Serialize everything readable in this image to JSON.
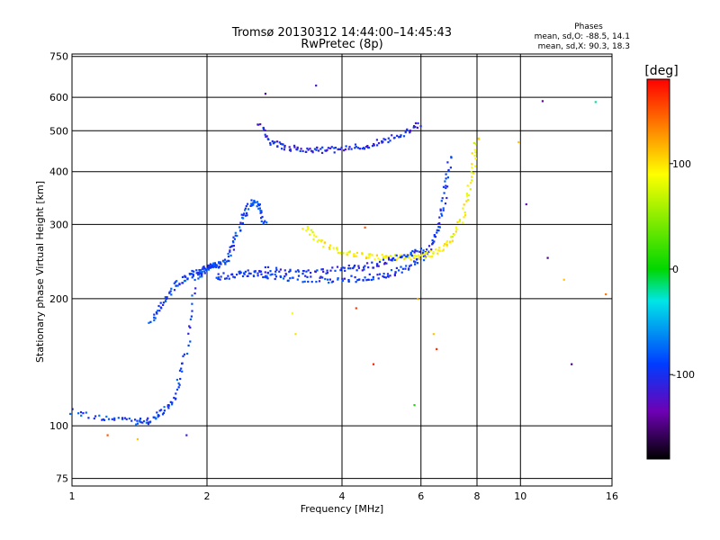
{
  "chart_data": {
    "type": "scatter",
    "title": "Tromsø 20130312 14:44:00–14:45:43",
    "subtitle": "RwPretec (8p)",
    "stats": {
      "heading": "Phases",
      "line_o": "mean, sd,O: -88.5, 14.1",
      "line_x": "mean, sd,X: 90.3, 18.3"
    },
    "xlabel": "Frequency [MHz]",
    "ylabel": "Stationary phase Virtual Height [km]",
    "xscale": "log",
    "yscale": "log",
    "xlim": [
      1,
      16
    ],
    "ylim": [
      72,
      760
    ],
    "xticks": [
      1,
      2,
      4,
      6,
      8,
      10,
      16
    ],
    "xtick_labels": [
      "1",
      "2",
      "4",
      "6",
      "8",
      "10",
      "16"
    ],
    "yticks": [
      75,
      100,
      200,
      300,
      400,
      500,
      600,
      750
    ],
    "ytick_labels": [
      "75",
      "100",
      "200",
      "300",
      "400",
      "500",
      "600",
      "750"
    ],
    "grid": true,
    "colorbar": {
      "label": "[deg]",
      "range": [
        -180,
        180
      ],
      "ticks": [
        100,
        0,
        -100
      ],
      "tick_labels": [
        "100",
        "0",
        "-100"
      ]
    },
    "traces": [
      {
        "phase": -90,
        "x": [
          1.0,
          1.2,
          1.4,
          1.5,
          1.6,
          1.7,
          1.8,
          1.9,
          2.0,
          2.1,
          2.2,
          2.3,
          2.4,
          2.5,
          2.6,
          2.7
        ],
        "y": [
          108,
          104,
          102,
          103,
          108,
          118,
          150,
          225,
          237,
          240,
          245,
          270,
          310,
          340,
          330,
          300
        ]
      },
      {
        "phase": -90,
        "x": [
          1.5,
          1.6,
          1.7,
          1.8,
          1.9,
          2.0,
          2.1
        ],
        "y": [
          175,
          195,
          215,
          225,
          232,
          236,
          240
        ]
      },
      {
        "phase": -95,
        "x": [
          2.1,
          2.3,
          2.5,
          2.7,
          3.0,
          3.5,
          4.0,
          4.5,
          5.0,
          5.5,
          6.0,
          6.3,
          6.6,
          6.8,
          7.0
        ],
        "y": [
          225,
          228,
          230,
          228,
          224,
          222,
          222,
          224,
          228,
          235,
          248,
          265,
          300,
          360,
          440
        ]
      },
      {
        "phase": -105,
        "x": [
          2.6,
          2.8,
          3.0,
          3.3,
          3.6,
          4.0,
          4.5,
          5.0,
          5.5,
          6.0
        ],
        "y": [
          520,
          470,
          455,
          450,
          450,
          452,
          460,
          475,
          495,
          520
        ]
      },
      {
        "phase": 90,
        "x": [
          3.3,
          3.6,
          4.0,
          4.5,
          5.0,
          5.5,
          6.0,
          6.5,
          7.0,
          7.5,
          7.8,
          8.0
        ],
        "y": [
          295,
          270,
          258,
          252,
          250,
          250,
          252,
          258,
          275,
          320,
          400,
          490
        ]
      },
      {
        "phase": -100,
        "x": [
          2.6,
          3.0,
          3.5,
          4.0,
          4.5,
          5.0,
          5.5,
          6.0
        ],
        "y": [
          235,
          232,
          232,
          235,
          238,
          245,
          252,
          262
        ]
      }
    ],
    "scatter_points": [
      {
        "x": 2.7,
        "y": 612,
        "phase": -150
      },
      {
        "x": 3.5,
        "y": 640,
        "phase": -120
      },
      {
        "x": 11.2,
        "y": 588,
        "phase": -140
      },
      {
        "x": 14.7,
        "y": 585,
        "phase": -20
      },
      {
        "x": 10.3,
        "y": 335,
        "phase": -130
      },
      {
        "x": 11.5,
        "y": 250,
        "phase": -150
      },
      {
        "x": 12.5,
        "y": 222,
        "phase": 110
      },
      {
        "x": 13.0,
        "y": 140,
        "phase": -150
      },
      {
        "x": 15.5,
        "y": 205,
        "phase": 140
      },
      {
        "x": 3.1,
        "y": 185,
        "phase": 90
      },
      {
        "x": 3.15,
        "y": 165,
        "phase": 100
      },
      {
        "x": 4.3,
        "y": 190,
        "phase": 160
      },
      {
        "x": 4.5,
        "y": 295,
        "phase": 150
      },
      {
        "x": 5.9,
        "y": 200,
        "phase": 120
      },
      {
        "x": 6.4,
        "y": 165,
        "phase": 110
      },
      {
        "x": 6.5,
        "y": 152,
        "phase": 165
      },
      {
        "x": 5.8,
        "y": 112,
        "phase": 10
      },
      {
        "x": 1.2,
        "y": 95,
        "phase": 150
      },
      {
        "x": 1.4,
        "y": 93,
        "phase": 110
      },
      {
        "x": 1.8,
        "y": 95,
        "phase": -110
      },
      {
        "x": 4.7,
        "y": 140,
        "phase": 170
      },
      {
        "x": 9.9,
        "y": 470,
        "phase": 110
      }
    ]
  }
}
